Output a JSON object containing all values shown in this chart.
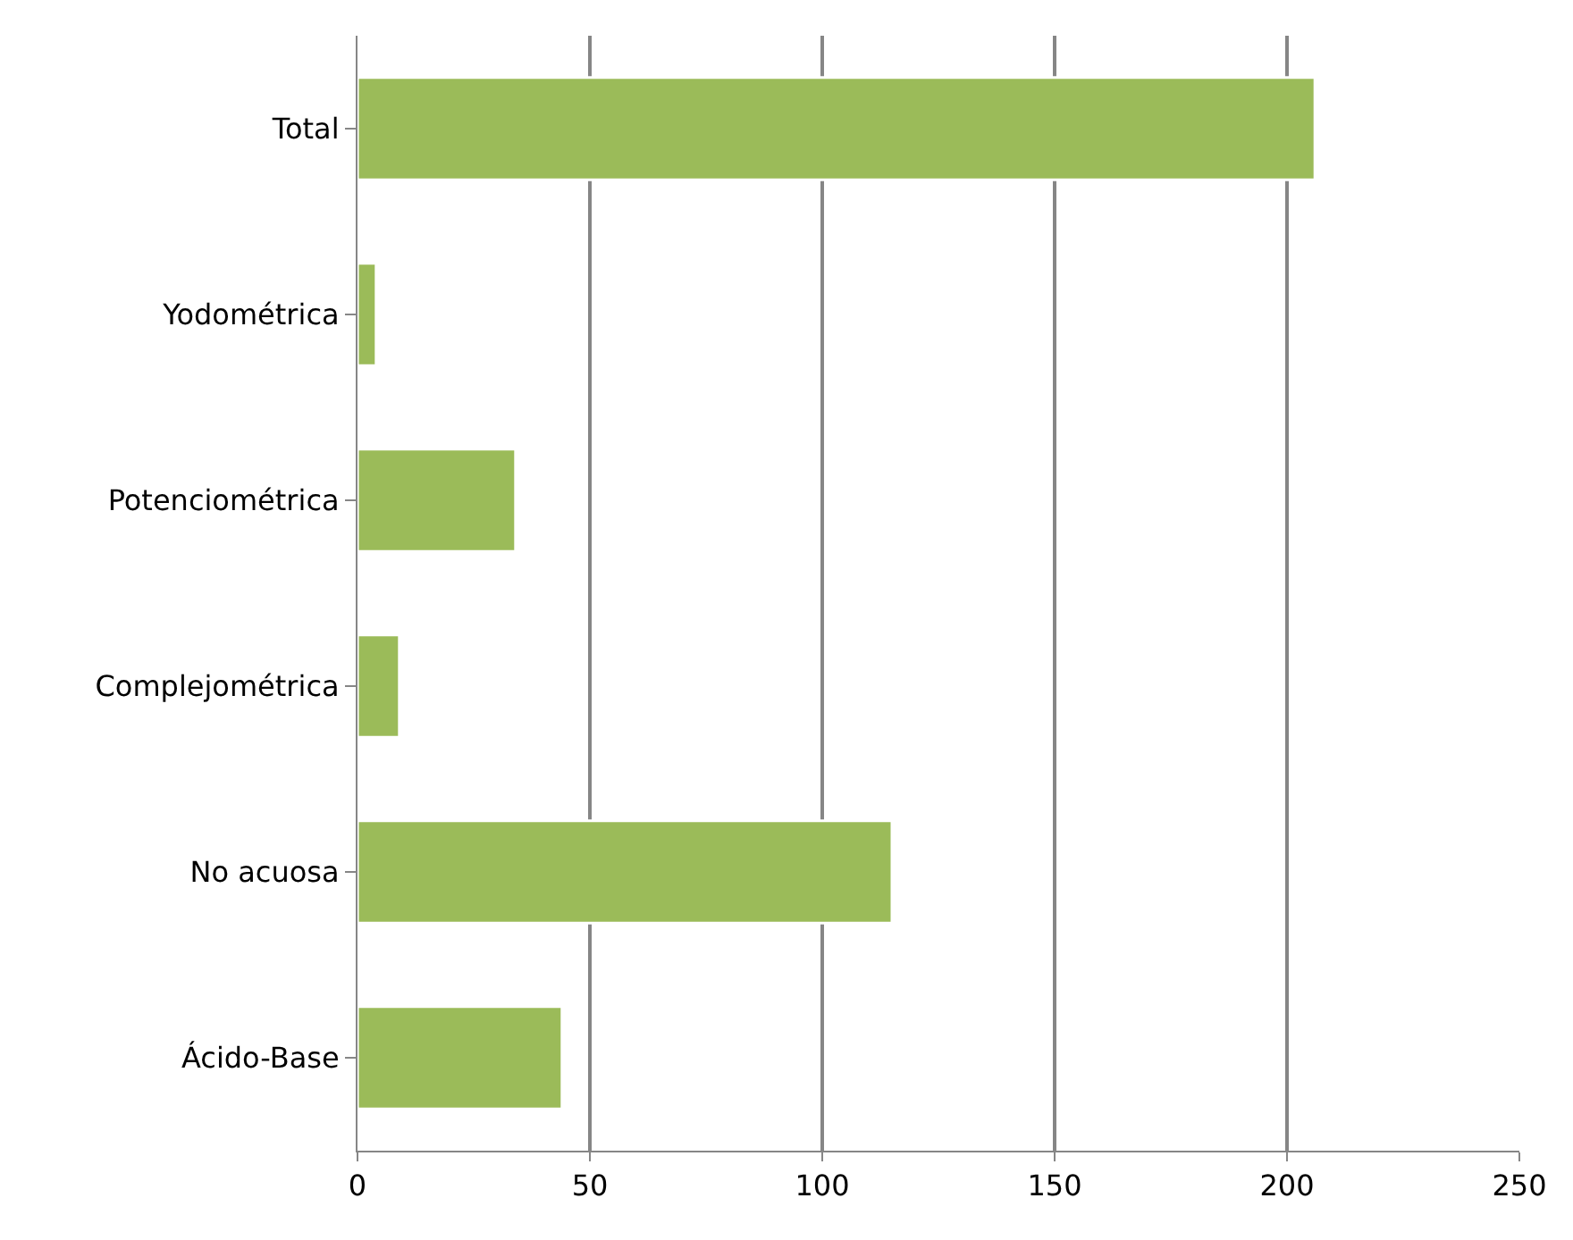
{
  "chart_data": {
    "type": "bar",
    "orientation": "horizontal",
    "categories": [
      "Total",
      "Yodométrica",
      "Potenciométrica",
      "Complejométrica",
      "No acuosa",
      "Ácido-Base"
    ],
    "values": [
      206,
      4,
      34,
      9,
      115,
      44
    ],
    "color": "#9bbb59",
    "xlim": [
      0,
      250
    ],
    "xticks": [
      0,
      50,
      100,
      150,
      200,
      250
    ],
    "grid": "x",
    "legend": false
  }
}
